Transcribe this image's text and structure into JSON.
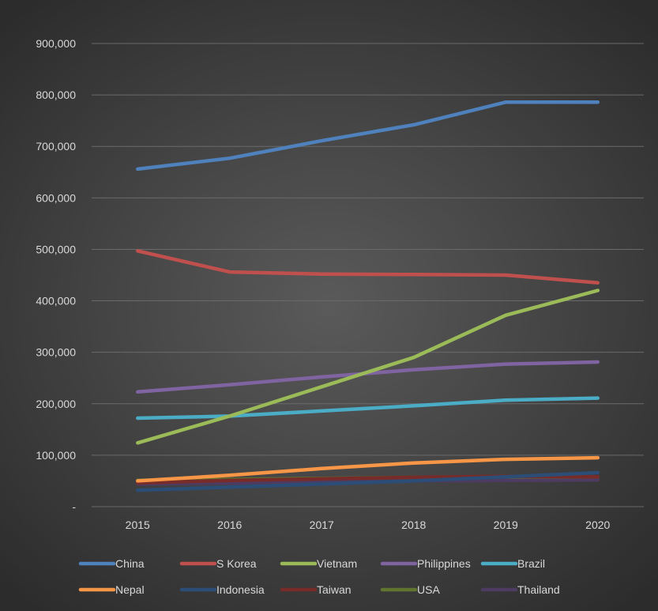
{
  "chart_data": {
    "type": "line",
    "title": "",
    "xlabel": "",
    "ylabel": "",
    "x": [
      "2015",
      "2016",
      "2017",
      "2018",
      "2019",
      "2020"
    ],
    "ylim": [
      0,
      900000
    ],
    "yticks": [
      0,
      100000,
      200000,
      300000,
      400000,
      500000,
      600000,
      700000,
      800000,
      900000
    ],
    "ytick_labels": [
      "-",
      "100,000",
      "200,000",
      "300,000",
      "400,000",
      "500,000",
      "600,000",
      "700,000",
      "800,000",
      "900,000"
    ],
    "grid": true,
    "legend_position": "bottom",
    "series": [
      {
        "name": "China",
        "color": "#4f81bd",
        "values": [
          656000,
          677000,
          711000,
          742000,
          786000,
          786000
        ]
      },
      {
        "name": "S Korea",
        "color": "#c0504d",
        "values": [
          497000,
          456000,
          452000,
          451000,
          450000,
          435000
        ]
      },
      {
        "name": "Vietnam",
        "color": "#9bbb59",
        "values": [
          124000,
          176000,
          233000,
          290000,
          372000,
          420000
        ]
      },
      {
        "name": "Philippines",
        "color": "#8064a2",
        "values": [
          223000,
          237000,
          252000,
          266000,
          277000,
          281000
        ]
      },
      {
        "name": "Brazil",
        "color": "#4bacc6",
        "values": [
          172000,
          176000,
          186000,
          196000,
          207000,
          211000
        ]
      },
      {
        "name": "Nepal",
        "color": "#f79646",
        "values": [
          50000,
          61000,
          74000,
          85000,
          92000,
          95000
        ]
      },
      {
        "name": "Indonesia",
        "color": "#2c4d75",
        "values": [
          32000,
          38000,
          44000,
          50000,
          58000,
          66000
        ]
      },
      {
        "name": "Taiwan",
        "color": "#772c2a",
        "values": [
          46000,
          51000,
          54000,
          57000,
          59000,
          58000
        ]
      },
      {
        "name": "USA",
        "color": "#5f7530",
        "values": [
          51000,
          53000,
          55000,
          57000,
          58000,
          58000
        ]
      },
      {
        "name": "Thailand",
        "color": "#4d3b62",
        "values": [
          44000,
          46000,
          48000,
          50000,
          51000,
          52000
        ]
      }
    ]
  }
}
